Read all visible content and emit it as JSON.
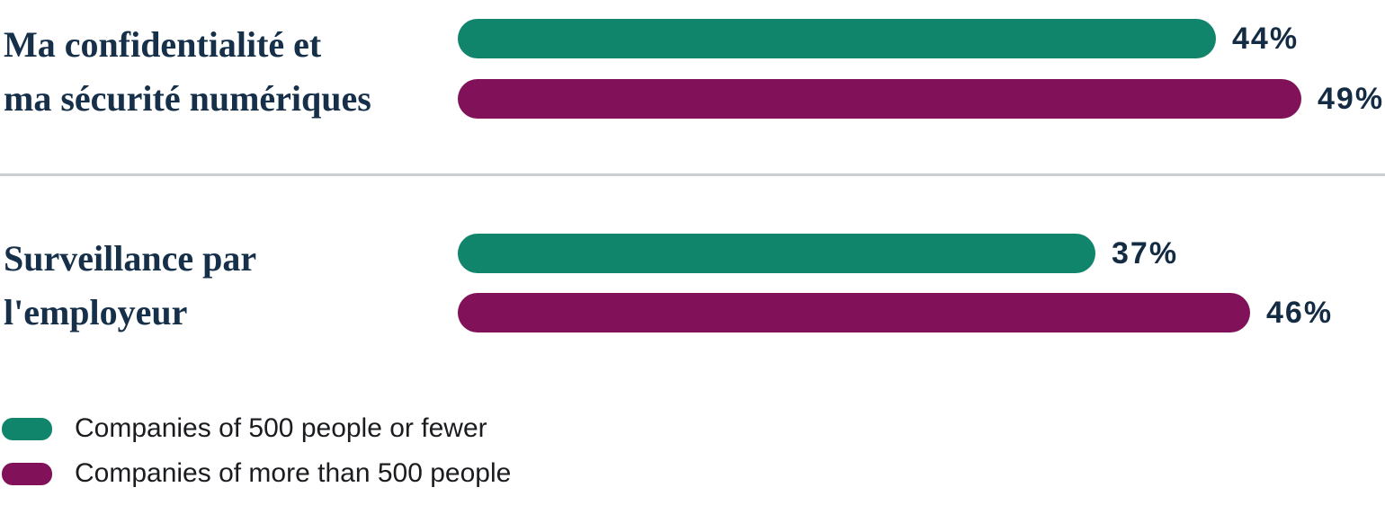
{
  "chart_data": {
    "type": "bar",
    "orientation": "horizontal",
    "unit": "%",
    "xlim": [
      0,
      100
    ],
    "grid": false,
    "legend_position": "bottom-left",
    "categories": [
      "Ma confidentialité et ma sécurité numériques",
      "Surveillance par l'employeur"
    ],
    "series": [
      {
        "name": "Companies of 500 people or fewer",
        "color": "#10856C",
        "values": [
          44,
          37
        ]
      },
      {
        "name": "Companies of more than 500 people",
        "color": "#81125A",
        "values": [
          49,
          46
        ]
      }
    ]
  },
  "groups": [
    {
      "label_lines": [
        "Ma confidentialité et",
        "ma sécurité numériques"
      ],
      "bars": [
        {
          "series": "Companies of 500 people or fewer",
          "value": 44,
          "display": "44%",
          "color": "#10856C"
        },
        {
          "series": "Companies of more than 500 people",
          "value": 49,
          "display": "49%",
          "color": "#81125A"
        }
      ]
    },
    {
      "label_lines": [
        "Surveillance par",
        "l'employeur"
      ],
      "bars": [
        {
          "series": "Companies of 500 people or fewer",
          "value": 37,
          "display": "37%",
          "color": "#10856C"
        },
        {
          "series": "Companies of more than 500 people",
          "value": 46,
          "display": "46%",
          "color": "#81125A"
        }
      ]
    }
  ],
  "legend": {
    "items": [
      {
        "label": "Companies of 500 people or fewer",
        "color": "#10856C"
      },
      {
        "label": "Companies of more than 500 people",
        "color": "#81125A"
      }
    ]
  },
  "style": {
    "label_color": "#16304A",
    "value_color": "#132B43",
    "legend_text_color": "#1A1C1F",
    "divider_color": "#C9CED3",
    "background": "#FFFFFF"
  }
}
